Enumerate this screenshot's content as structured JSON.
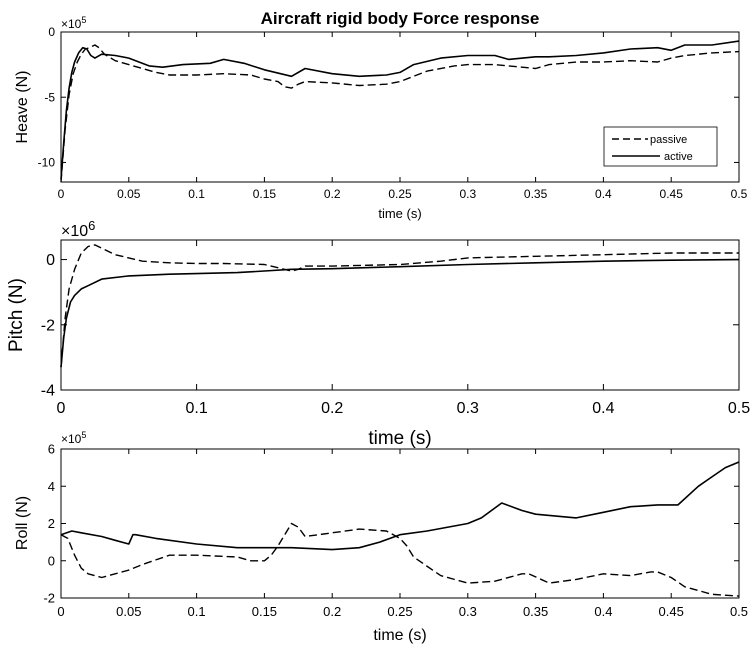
{
  "chart_data": [
    {
      "type": "line",
      "title": "Aircraft rigid body Force response",
      "xlabel": "time (s)",
      "ylabel": "Heave (N)",
      "multiplier": "×10",
      "multiplier_exp": "5",
      "xlim": [
        0,
        0.5
      ],
      "ylim": [
        -11.5,
        0
      ],
      "xticks": [
        "0",
        "0.05",
        "0.1",
        "0.15",
        "0.2",
        "0.25",
        "0.3",
        "0.35",
        "0.4",
        "0.45",
        "0.5"
      ],
      "yticks": [
        "0",
        "-5",
        "-10"
      ],
      "legend": {
        "position": "bottom-right",
        "entries": [
          "passive",
          "active"
        ]
      },
      "series": [
        {
          "name": "passive",
          "style": "dashed",
          "x": [
            0,
            0.003,
            0.006,
            0.009,
            0.012,
            0.015,
            0.018,
            0.021,
            0.025,
            0.028,
            0.032,
            0.04,
            0.05,
            0.07,
            0.08,
            0.1,
            0.12,
            0.14,
            0.15,
            0.16,
            0.165,
            0.17,
            0.175,
            0.18,
            0.2,
            0.22,
            0.24,
            0.25,
            0.26,
            0.27,
            0.29,
            0.3,
            0.32,
            0.34,
            0.35,
            0.36,
            0.38,
            0.4,
            0.42,
            0.44,
            0.45,
            0.46,
            0.48,
            0.5
          ],
          "y": [
            -11.5,
            -7.5,
            -4.8,
            -3.2,
            -2.3,
            -1.7,
            -1.3,
            -1.2,
            -1.0,
            -1.2,
            -1.7,
            -2.2,
            -2.5,
            -3.1,
            -3.3,
            -3.3,
            -3.2,
            -3.3,
            -3.6,
            -3.8,
            -4.2,
            -4.3,
            -4.0,
            -3.8,
            -3.9,
            -4.1,
            -4.0,
            -3.8,
            -3.4,
            -3.0,
            -2.6,
            -2.5,
            -2.5,
            -2.7,
            -2.8,
            -2.5,
            -2.3,
            -2.3,
            -2.2,
            -2.3,
            -2.0,
            -1.8,
            -1.6,
            -1.5
          ]
        },
        {
          "name": "active",
          "style": "solid",
          "x": [
            0,
            0.002,
            0.004,
            0.006,
            0.008,
            0.01,
            0.013,
            0.016,
            0.019,
            0.022,
            0.025,
            0.03,
            0.04,
            0.05,
            0.065,
            0.075,
            0.09,
            0.11,
            0.12,
            0.135,
            0.15,
            0.17,
            0.18,
            0.2,
            0.22,
            0.24,
            0.25,
            0.26,
            0.28,
            0.3,
            0.32,
            0.33,
            0.35,
            0.36,
            0.38,
            0.4,
            0.42,
            0.44,
            0.45,
            0.46,
            0.48,
            0.5
          ],
          "y": [
            -11.3,
            -8.5,
            -6.0,
            -4.3,
            -3.1,
            -2.3,
            -1.6,
            -1.2,
            -1.3,
            -1.8,
            -2.0,
            -1.7,
            -1.8,
            -2.0,
            -2.6,
            -2.7,
            -2.5,
            -2.4,
            -2.1,
            -2.4,
            -2.9,
            -3.4,
            -2.8,
            -3.2,
            -3.4,
            -3.3,
            -3.1,
            -2.5,
            -2.0,
            -1.8,
            -1.8,
            -2.1,
            -1.9,
            -1.9,
            -1.8,
            -1.6,
            -1.3,
            -1.2,
            -1.4,
            -1.0,
            -1.0,
            -0.7
          ]
        }
      ]
    },
    {
      "type": "line",
      "xlabel": "time (s)",
      "ylabel": "Pitch (N)",
      "multiplier": "×10",
      "multiplier_exp": "6",
      "xlim": [
        0,
        0.5
      ],
      "ylim": [
        -4,
        0.6
      ],
      "xticks": [
        "0",
        "0.1",
        "0.2",
        "0.3",
        "0.4",
        "0.5"
      ],
      "yticks": [
        "0",
        "-2",
        "-4"
      ],
      "series": [
        {
          "name": "passive",
          "style": "dashed",
          "x": [
            0,
            0.003,
            0.006,
            0.01,
            0.015,
            0.02,
            0.025,
            0.03,
            0.04,
            0.05,
            0.06,
            0.08,
            0.1,
            0.12,
            0.15,
            0.17,
            0.175,
            0.18,
            0.2,
            0.25,
            0.28,
            0.3,
            0.35,
            0.4,
            0.45,
            0.5
          ],
          "y": [
            -3.3,
            -1.8,
            -0.9,
            -0.3,
            0.2,
            0.4,
            0.45,
            0.35,
            0.15,
            0.05,
            -0.05,
            -0.1,
            -0.12,
            -0.12,
            -0.15,
            -0.35,
            -0.3,
            -0.2,
            -0.2,
            -0.15,
            -0.05,
            0.05,
            0.1,
            0.15,
            0.2,
            0.2
          ]
        },
        {
          "name": "active",
          "style": "solid",
          "x": [
            0,
            0.002,
            0.004,
            0.007,
            0.01,
            0.015,
            0.02,
            0.03,
            0.05,
            0.08,
            0.1,
            0.13,
            0.15,
            0.17,
            0.2,
            0.25,
            0.3,
            0.35,
            0.4,
            0.45,
            0.5
          ],
          "y": [
            -3.3,
            -2.4,
            -1.8,
            -1.3,
            -1.1,
            -0.9,
            -0.8,
            -0.6,
            -0.5,
            -0.45,
            -0.43,
            -0.4,
            -0.35,
            -0.3,
            -0.28,
            -0.22,
            -0.15,
            -0.1,
            -0.05,
            -0.02,
            0.0
          ]
        }
      ]
    },
    {
      "type": "line",
      "xlabel": "time (s)",
      "ylabel": "Roll (N)",
      "multiplier": "×10",
      "multiplier_exp": "5",
      "xlim": [
        0,
        0.5
      ],
      "ylim": [
        -2,
        6
      ],
      "xticks": [
        "0",
        "0.05",
        "0.1",
        "0.15",
        "0.2",
        "0.25",
        "0.3",
        "0.35",
        "0.4",
        "0.45",
        "0.5"
      ],
      "yticks": [
        "6",
        "4",
        "2",
        "0",
        "-2"
      ],
      "series": [
        {
          "name": "passive",
          "style": "dashed",
          "x": [
            0,
            0.005,
            0.01,
            0.015,
            0.02,
            0.03,
            0.04,
            0.05,
            0.06,
            0.08,
            0.1,
            0.13,
            0.14,
            0.15,
            0.155,
            0.16,
            0.17,
            0.175,
            0.18,
            0.19,
            0.2,
            0.22,
            0.24,
            0.25,
            0.255,
            0.26,
            0.28,
            0.3,
            0.32,
            0.34,
            0.345,
            0.36,
            0.38,
            0.4,
            0.42,
            0.435,
            0.44,
            0.45,
            0.46,
            0.48,
            0.5
          ],
          "y": [
            1.4,
            1.2,
            0.3,
            -0.4,
            -0.7,
            -0.9,
            -0.7,
            -0.5,
            -0.2,
            0.3,
            0.3,
            0.2,
            0.0,
            0.0,
            0.3,
            0.8,
            2.0,
            1.8,
            1.3,
            1.4,
            1.5,
            1.7,
            1.6,
            1.2,
            0.8,
            0.2,
            -0.8,
            -1.2,
            -1.1,
            -0.7,
            -0.7,
            -1.2,
            -1.0,
            -0.7,
            -0.8,
            -0.6,
            -0.6,
            -0.9,
            -1.4,
            -1.8,
            -1.9
          ]
        },
        {
          "name": "active",
          "style": "solid",
          "x": [
            0,
            0.008,
            0.015,
            0.03,
            0.04,
            0.05,
            0.053,
            0.055,
            0.07,
            0.1,
            0.13,
            0.14,
            0.15,
            0.17,
            0.2,
            0.22,
            0.235,
            0.25,
            0.27,
            0.3,
            0.31,
            0.325,
            0.34,
            0.35,
            0.38,
            0.4,
            0.42,
            0.44,
            0.455,
            0.47,
            0.48,
            0.49,
            0.5
          ],
          "y": [
            1.4,
            1.6,
            1.5,
            1.3,
            1.1,
            0.9,
            1.4,
            1.4,
            1.2,
            0.9,
            0.7,
            0.7,
            0.7,
            0.7,
            0.6,
            0.7,
            1.0,
            1.4,
            1.6,
            2.0,
            2.3,
            3.1,
            2.7,
            2.5,
            2.3,
            2.6,
            2.9,
            3.0,
            3.0,
            4.0,
            4.5,
            5.0,
            5.3
          ]
        }
      ]
    }
  ]
}
